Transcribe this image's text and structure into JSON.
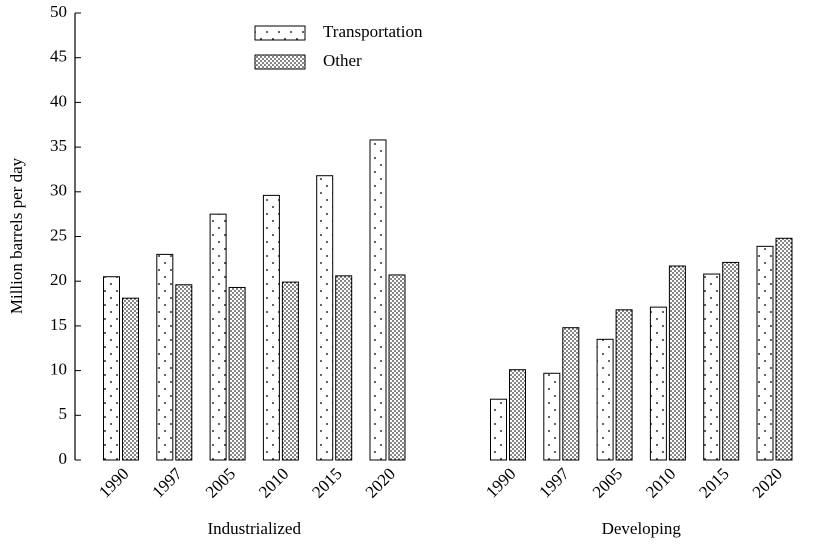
{
  "chart_data": {
    "type": "bar",
    "y_label": "Million barrels per day",
    "ylim": [
      0,
      50
    ],
    "yticks": [
      0,
      5,
      10,
      15,
      20,
      25,
      30,
      35,
      40,
      45,
      50
    ],
    "series": [
      {
        "name": "Transportation",
        "pattern": "sparse-dots"
      },
      {
        "name": "Other",
        "pattern": "dense-dots"
      }
    ],
    "groups": [
      {
        "label": "Industrialized",
        "categories": [
          "1990",
          "1997",
          "2005",
          "2010",
          "2015",
          "2020"
        ],
        "values": [
          [
            20.5,
            23,
            27.5,
            29.6,
            31.8,
            35.8
          ],
          [
            18.1,
            19.6,
            19.3,
            19.9,
            20.6,
            20.7
          ]
        ]
      },
      {
        "label": "Developing",
        "categories": [
          "1990",
          "1997",
          "2005",
          "2010",
          "2015",
          "2020"
        ],
        "values": [
          [
            6.8,
            9.7,
            13.5,
            17.1,
            20.8,
            23.9
          ],
          [
            10.1,
            14.8,
            16.8,
            21.7,
            22.1,
            24.8
          ]
        ]
      }
    ],
    "legend": "top-center"
  }
}
